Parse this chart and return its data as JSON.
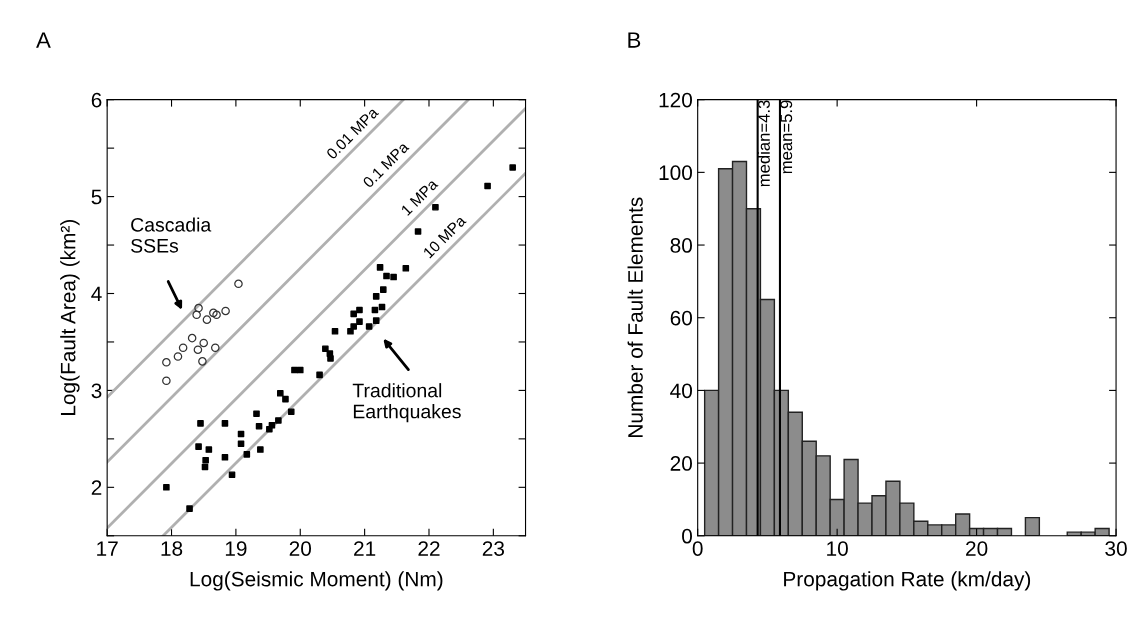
{
  "chart_data": [
    {
      "type": "scatter",
      "title": "A",
      "xlabel": "Log(Seismic Moment) (Nm)",
      "ylabel": "Log(Fault Area) (km²)",
      "xlim": [
        17,
        23.5
      ],
      "xticks": [
        17,
        18,
        19,
        20,
        21,
        22,
        23
      ],
      "ylim": [
        1.5,
        6
      ],
      "yticks": [
        {
          "value": 1.5,
          "label": null
        },
        2,
        {
          "value": 2.5,
          "label": null
        },
        3,
        {
          "value": 3.5,
          "label": null
        },
        4,
        {
          "value": 4.5,
          "label": null
        },
        5,
        {
          "value": 5.5,
          "label": null
        },
        6
      ],
      "grid": false,
      "series": [
        {
          "type": "line",
          "name": "0.01 MPa",
          "color": "#b0b0b0",
          "x": [
            17,
            21.6
          ],
          "values": [
            2.93,
            6.0
          ]
        },
        {
          "type": "line",
          "name": "0.1 MPa",
          "color": "#b0b0b0",
          "x": [
            17,
            22.61
          ],
          "values": [
            2.26,
            6.0
          ]
        },
        {
          "type": "line",
          "name": "1 MPa",
          "color": "#b0b0b0",
          "x": [
            17,
            23.5
          ],
          "values": [
            1.58,
            5.91
          ]
        },
        {
          "type": "line",
          "name": "10 MPa",
          "color": "#b0b0b0",
          "x": [
            17.87,
            23.5
          ],
          "values": [
            1.5,
            5.24
          ]
        },
        {
          "type": "scatter",
          "marker": "circle",
          "color": "#333333",
          "x": [
            19.04,
            18.42,
            18.39,
            18.55,
            18.65,
            18.7,
            18.84,
            18.32,
            18.5,
            18.41,
            18.18,
            18.1,
            18.68,
            17.92,
            18.48,
            17.92
          ],
          "values": [
            4.1,
            3.85,
            3.78,
            3.73,
            3.8,
            3.78,
            3.82,
            3.54,
            3.49,
            3.42,
            3.44,
            3.35,
            3.44,
            3.29,
            3.3,
            3.1
          ]
        },
        {
          "type": "scatter",
          "marker": "square",
          "color": "#000000",
          "x": [
            17.92,
            18.28,
            18.45,
            18.83,
            18.42,
            18.58,
            18.53,
            18.52,
            18.83,
            18.94,
            19.08,
            19.08,
            19.17,
            19.38,
            19.32,
            19.36,
            19.52,
            19.56,
            19.66,
            19.86,
            19.69,
            19.77,
            19.91,
            20.0,
            20.3,
            20.39,
            20.46,
            20.47,
            20.54,
            20.78,
            20.83,
            20.83,
            20.92,
            20.92,
            21.07,
            21.18,
            21.27,
            21.16,
            21.18,
            21.29,
            21.24,
            21.34,
            21.45,
            21.64,
            21.83,
            22.1,
            22.91,
            23.3
          ],
          "values": [
            2.0,
            1.78,
            2.66,
            2.66,
            2.42,
            2.39,
            2.28,
            2.21,
            2.31,
            2.13,
            2.55,
            2.45,
            2.34,
            2.39,
            2.76,
            2.63,
            2.6,
            2.64,
            2.69,
            2.78,
            2.97,
            2.91,
            3.21,
            3.21,
            3.16,
            3.43,
            3.38,
            3.33,
            3.61,
            3.61,
            3.66,
            3.79,
            3.71,
            3.83,
            3.66,
            3.72,
            3.86,
            3.83,
            3.97,
            4.04,
            4.27,
            4.18,
            4.17,
            4.26,
            4.64,
            4.89,
            5.11,
            5.3
          ]
        }
      ],
      "annotations": [
        "Cascadia\nSSEs",
        "Traditional\nEarthquakes"
      ]
    },
    {
      "type": "histogram",
      "title": "B",
      "xlabel": "Propagation Rate (km/day)",
      "ylabel": "Number of Fault Elements",
      "xlim": [
        0,
        30
      ],
      "xticks": [
        0,
        10,
        20,
        30
      ],
      "ylim": [
        0,
        120
      ],
      "yticks": [
        0,
        20,
        40,
        60,
        80,
        100,
        120
      ],
      "grid": false,
      "color": "#8c8c8c",
      "bins": [
        0.5,
        1.5,
        2.5,
        3.5,
        4.5,
        5.5,
        6.5,
        7.5,
        8.5,
        9.5,
        10.5,
        11.5,
        12.5,
        13.5,
        14.5,
        15.5,
        16.5,
        17.5,
        18.5,
        19.5,
        20.5,
        21.5,
        22.5,
        23.5,
        24.5,
        25.5,
        26.5,
        27.5,
        28.5,
        29.5
      ],
      "values": [
        40,
        101,
        103,
        90,
        65,
        40,
        34,
        26,
        22,
        10,
        21,
        9,
        11,
        15,
        9,
        4,
        3,
        3,
        6,
        2,
        2,
        2,
        0,
        5,
        0,
        0,
        1,
        1,
        2
      ],
      "ref_lines": [
        {
          "axis": "x",
          "value": 4.3,
          "label": "median=4.3",
          "color": "#000000"
        },
        {
          "axis": "x",
          "value": 5.9,
          "label": "mean=5.9",
          "color": "#000000"
        }
      ]
    }
  ]
}
